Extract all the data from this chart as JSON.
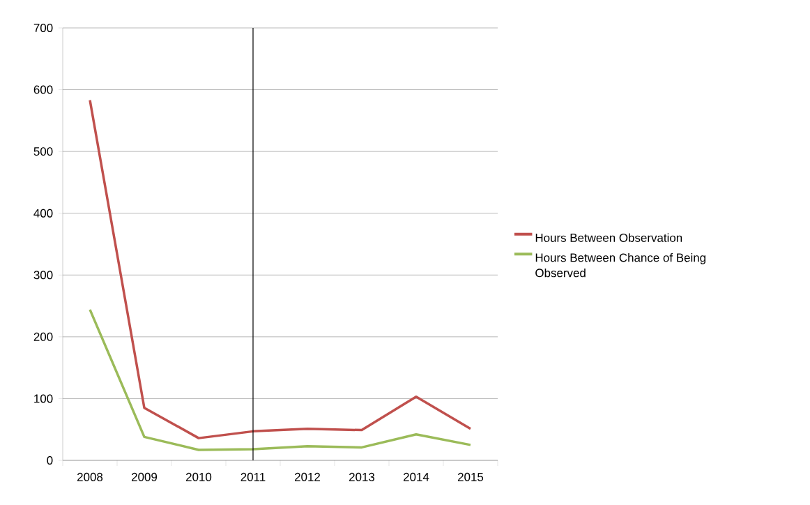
{
  "chart_data": {
    "type": "line",
    "categories": [
      "2008",
      "2009",
      "2010",
      "2011",
      "2012",
      "2013",
      "2014",
      "2015"
    ],
    "series": [
      {
        "name": "Hours Between Observation",
        "color": "#c0504d",
        "values": [
          583,
          85,
          36,
          47,
          51,
          49,
          103,
          51
        ]
      },
      {
        "name": "Hours Between Chance of Being Observed",
        "color": "#9bbb59",
        "values": [
          244,
          38,
          17,
          18,
          23,
          21,
          42,
          25
        ]
      }
    ],
    "ylim": [
      0,
      700
    ],
    "yticks": [
      0,
      100,
      200,
      300,
      400,
      500,
      600,
      700
    ],
    "grid": "y",
    "legend": "right",
    "marker": "none",
    "line_style": "solid",
    "ref_lines": [
      {
        "axis": "x",
        "value": "2011",
        "color": "#000000"
      }
    ]
  }
}
